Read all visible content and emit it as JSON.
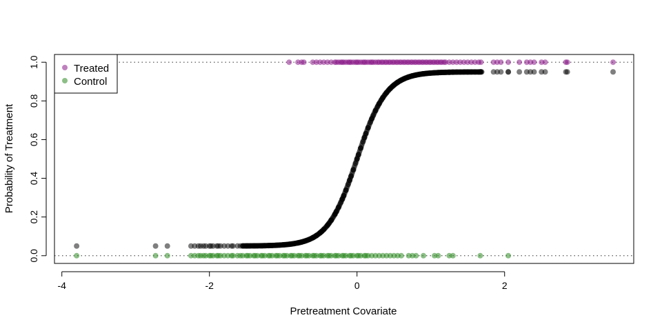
{
  "chart_data": {
    "type": "scatter",
    "title": "",
    "xlabel": "Pretreatment Covariate",
    "ylabel": "Probability of Treatment",
    "xlim": [
      -4.1,
      3.75
    ],
    "ylim": [
      -0.04,
      1.04
    ],
    "x_ticks": [
      -4,
      -2,
      0,
      2
    ],
    "y_ticks": [
      0.0,
      0.2,
      0.4,
      0.6,
      0.8,
      1.0
    ],
    "x_tick_labels": [
      "-4",
      "-2",
      "0",
      "2"
    ],
    "y_tick_labels": [
      "0.0",
      "0.2",
      "0.4",
      "0.6",
      "0.8",
      "1.0"
    ],
    "reference_lines": [
      0,
      1
    ],
    "legend": {
      "position": "top-left",
      "entries": [
        {
          "label": "Treated",
          "color": "#8B1A89"
        },
        {
          "label": "Control",
          "color": "#2E8B22"
        }
      ]
    },
    "colors": {
      "treated": "#8B1A89",
      "control": "#2E8B22",
      "fitted": "#000000"
    },
    "curve": {
      "k": 5.0,
      "lower": 0.05,
      "upper": 0.95
    },
    "series": [
      {
        "name": "Treated",
        "y": 1.0,
        "x": [
          -0.92,
          -0.8,
          -0.75,
          -0.72,
          -0.6,
          -0.55,
          -0.5,
          -0.45,
          -0.4,
          -0.35,
          -0.3,
          -0.28,
          -0.25,
          -0.22,
          -0.2,
          -0.18,
          -0.15,
          -0.12,
          -0.1,
          -0.08,
          -0.05,
          -0.02,
          0.0,
          0.02,
          0.05,
          0.08,
          0.1,
          0.12,
          0.15,
          0.18,
          0.2,
          0.22,
          0.25,
          0.28,
          0.3,
          0.33,
          0.35,
          0.38,
          0.4,
          0.43,
          0.45,
          0.48,
          0.5,
          0.53,
          0.55,
          0.58,
          0.6,
          0.63,
          0.65,
          0.68,
          0.7,
          0.73,
          0.75,
          0.78,
          0.8,
          0.83,
          0.85,
          0.88,
          0.9,
          0.93,
          0.95,
          0.98,
          1.0,
          1.03,
          1.05,
          1.08,
          1.1,
          1.13,
          1.15,
          1.18,
          1.2,
          1.25,
          1.3,
          1.35,
          1.4,
          1.45,
          1.5,
          1.55,
          1.6,
          1.65,
          1.68,
          1.85,
          1.9,
          1.95,
          2.05,
          2.2,
          2.3,
          2.35,
          2.4,
          2.5,
          2.55,
          2.83,
          2.85,
          3.47
        ]
      },
      {
        "name": "Control",
        "y": 0.0,
        "x": [
          -3.8,
          -2.73,
          -2.57,
          -2.25,
          -2.2,
          -2.15,
          -2.12,
          -2.08,
          -2.05,
          -2.0,
          -1.98,
          -1.95,
          -1.9,
          -1.88,
          -1.85,
          -1.8,
          -1.75,
          -1.7,
          -1.68,
          -1.62,
          -1.58,
          -1.55,
          -1.5,
          -1.48,
          -1.45,
          -1.4,
          -1.38,
          -1.35,
          -1.3,
          -1.28,
          -1.25,
          -1.2,
          -1.18,
          -1.15,
          -1.1,
          -1.08,
          -1.05,
          -1.0,
          -0.98,
          -0.95,
          -0.9,
          -0.88,
          -0.85,
          -0.8,
          -0.78,
          -0.75,
          -0.7,
          -0.68,
          -0.65,
          -0.6,
          -0.58,
          -0.55,
          -0.5,
          -0.48,
          -0.45,
          -0.4,
          -0.38,
          -0.35,
          -0.3,
          -0.28,
          -0.25,
          -0.2,
          -0.18,
          -0.15,
          -0.1,
          -0.08,
          -0.05,
          0.0,
          0.02,
          0.05,
          0.1,
          0.12,
          0.15,
          0.2,
          0.25,
          0.3,
          0.35,
          0.4,
          0.45,
          0.5,
          0.55,
          0.6,
          0.7,
          0.75,
          0.8,
          0.9,
          1.05,
          1.1,
          1.25,
          1.3,
          1.67,
          2.05
        ]
      }
    ]
  }
}
